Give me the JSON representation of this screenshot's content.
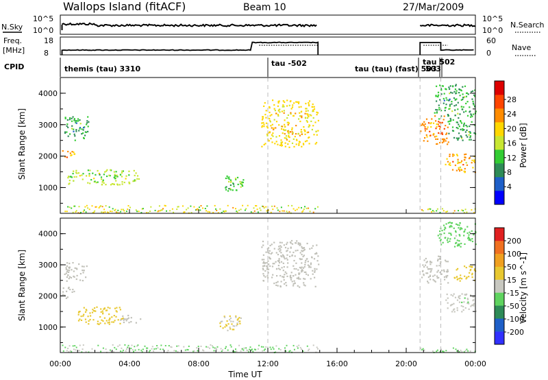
{
  "header": {
    "title": "Wallops Island (fitACF)",
    "beam": "Beam 10",
    "date": "27/Mar/2009"
  },
  "nsky_panel": {
    "left_label": "N.Sky",
    "right_label": "N.Search",
    "left_ticks": [
      "10^5",
      "10^0"
    ],
    "right_ticks": [
      "10^5",
      "10^0"
    ]
  },
  "freq_panel": {
    "left_label_1": "Freq.",
    "left_label_2": "[MHz]",
    "right_label": "Nave",
    "left_ticks": [
      "18",
      "8"
    ],
    "right_ticks": [
      "60",
      "0"
    ]
  },
  "cpid_panel": {
    "label": "CPID",
    "modes": [
      {
        "label": "themis (tau) 3310"
      },
      {
        "label": "tau -502"
      },
      {
        "label": "tau (tau) (fast) 503"
      },
      {
        "label": "tau 502"
      },
      {
        "label": "503"
      }
    ]
  },
  "colors": {
    "power_scale": [
      "#0000ff",
      "#1e5fc8",
      "#2e8b57",
      "#33cc33",
      "#c8e632",
      "#ffd700",
      "#ff8c00",
      "#ff4500",
      "#dd0000"
    ],
    "velocity_scale": [
      "#3030ff",
      "#1e5fc8",
      "#2e8b57",
      "#5fd35f",
      "#c8c8c0",
      "#e8c830",
      "#f0a020",
      "#f07020",
      "#e02020"
    ],
    "ground_scatter": "#c0c0b8"
  },
  "chart_data": [
    {
      "type": "heatmap",
      "panel": "power",
      "ylabel": "Slant Range [km]",
      "xlabel": "",
      "ylim": [
        180,
        4500
      ],
      "xlim": [
        "00:00",
        "24:00"
      ],
      "yticks": [
        "1000",
        "2000",
        "3000",
        "4000"
      ],
      "colorbar": {
        "label": "Power [dB]",
        "ticks": [
          "28",
          "24",
          "20",
          "16",
          "12",
          "8",
          "4"
        ],
        "range": [
          0,
          30
        ]
      },
      "scatter_regions": [
        {
          "time_start": 0.2,
          "time_end": 1.6,
          "range_start": 2500,
          "range_end": 3300,
          "value": 10
        },
        {
          "time_start": 0.1,
          "time_end": 0.8,
          "range_start": 1900,
          "range_end": 2200,
          "value": 20
        },
        {
          "time_start": 0.4,
          "time_end": 4.6,
          "range_start": 1100,
          "range_end": 1600,
          "value": 14
        },
        {
          "time_start": 9.2,
          "time_end": 10.6,
          "range_start": 900,
          "range_end": 1400,
          "value": 12
        },
        {
          "time_start": 11.6,
          "time_end": 14.9,
          "range_start": 2300,
          "range_end": 3800,
          "value": 18
        },
        {
          "time_start": 20.8,
          "time_end": 22.4,
          "range_start": 2400,
          "range_end": 3300,
          "value": 22
        },
        {
          "time_start": 21.6,
          "time_end": 24.0,
          "range_start": 3000,
          "range_end": 4300,
          "value": 10
        },
        {
          "time_start": 22.2,
          "time_end": 24.0,
          "range_start": 1500,
          "range_end": 2100,
          "value": 20
        },
        {
          "time_start": 22.4,
          "time_end": 24.0,
          "range_start": 2500,
          "range_end": 3000,
          "value": 10
        }
      ]
    },
    {
      "type": "heatmap",
      "panel": "velocity",
      "ylabel": "Slant Range [km]",
      "xlabel": "Time UT",
      "ylim": [
        180,
        4500
      ],
      "xlim": [
        "00:00",
        "24:00"
      ],
      "yticks": [
        "1000",
        "2000",
        "3000",
        "4000"
      ],
      "xticks": [
        "00:00",
        "04:00",
        "08:00",
        "12:00",
        "16:00",
        "20:00",
        "00:00"
      ],
      "colorbar": {
        "label": "Velocity [m s^-1]",
        "ticks": [
          "200",
          "100",
          "50",
          "15",
          "-15",
          "-50",
          "-100",
          "-200"
        ],
        "range": [
          -250,
          250
        ]
      },
      "scatter_regions": [
        {
          "time_start": 0.2,
          "time_end": 1.6,
          "range_start": 2500,
          "range_end": 3100,
          "value": 0
        },
        {
          "time_start": 0.1,
          "time_end": 0.8,
          "range_start": 1900,
          "range_end": 2300,
          "value": 0
        },
        {
          "time_start": 1.0,
          "time_end": 3.6,
          "range_start": 1100,
          "range_end": 1700,
          "value": 40
        },
        {
          "time_start": 3.4,
          "time_end": 4.6,
          "range_start": 1150,
          "range_end": 1400,
          "value": 0
        },
        {
          "time_start": 9.2,
          "time_end": 10.6,
          "range_start": 900,
          "range_end": 1400,
          "value": 30
        },
        {
          "time_start": 11.6,
          "time_end": 14.9,
          "range_start": 2300,
          "range_end": 3800,
          "value": 0
        },
        {
          "time_start": 20.8,
          "time_end": 22.4,
          "range_start": 2400,
          "range_end": 3300,
          "value": 0
        },
        {
          "time_start": 21.8,
          "time_end": 24.0,
          "range_start": 3600,
          "range_end": 4400,
          "value": -40
        },
        {
          "time_start": 22.2,
          "time_end": 24.0,
          "range_start": 1500,
          "range_end": 2100,
          "value": -20
        },
        {
          "time_start": 22.6,
          "time_end": 24.0,
          "range_start": 2500,
          "range_end": 3000,
          "value": 60
        }
      ]
    }
  ]
}
